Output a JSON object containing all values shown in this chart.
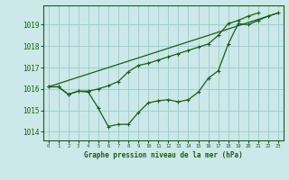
{
  "bg_color": "#cce8e8",
  "grid_color": "#99cccc",
  "line_color": "#1a5c1a",
  "title": "Graphe pression niveau de la mer (hPa)",
  "xlim": [
    -0.5,
    23.5
  ],
  "ylim": [
    1013.6,
    1019.9
  ],
  "yticks": [
    1014,
    1015,
    1016,
    1017,
    1018,
    1019
  ],
  "xticks": [
    0,
    1,
    2,
    3,
    4,
    5,
    6,
    7,
    8,
    9,
    10,
    11,
    12,
    13,
    14,
    15,
    16,
    17,
    18,
    19,
    20,
    21,
    22,
    23
  ],
  "series1_x": [
    0,
    1,
    2,
    3,
    4,
    5,
    6,
    7,
    8,
    9,
    10,
    11,
    12,
    13,
    14,
    15,
    16,
    17,
    18,
    19,
    20,
    21,
    22,
    23
  ],
  "series1_y": [
    1016.1,
    1016.1,
    1015.75,
    1015.9,
    1015.85,
    1015.1,
    1014.25,
    1014.35,
    1014.35,
    1014.9,
    1015.35,
    1015.45,
    1015.5,
    1015.4,
    1015.5,
    1015.85,
    1016.5,
    1016.85,
    1018.1,
    1019.05,
    1019.0,
    1019.2,
    1019.4,
    1019.55
  ],
  "series2_x": [
    0,
    1,
    2,
    3,
    4,
    5,
    6,
    7,
    8,
    9,
    10,
    11,
    12,
    13,
    14,
    15,
    16,
    17,
    18,
    19,
    20,
    21
  ],
  "series2_y": [
    1016.1,
    1016.1,
    1015.75,
    1015.9,
    1015.9,
    1016.0,
    1016.15,
    1016.35,
    1016.8,
    1017.1,
    1017.2,
    1017.35,
    1017.5,
    1017.65,
    1017.8,
    1017.95,
    1018.1,
    1018.5,
    1019.05,
    1019.2,
    1019.4,
    1019.55
  ],
  "series3_x": [
    0,
    23
  ],
  "series3_y": [
    1016.1,
    1019.55
  ]
}
